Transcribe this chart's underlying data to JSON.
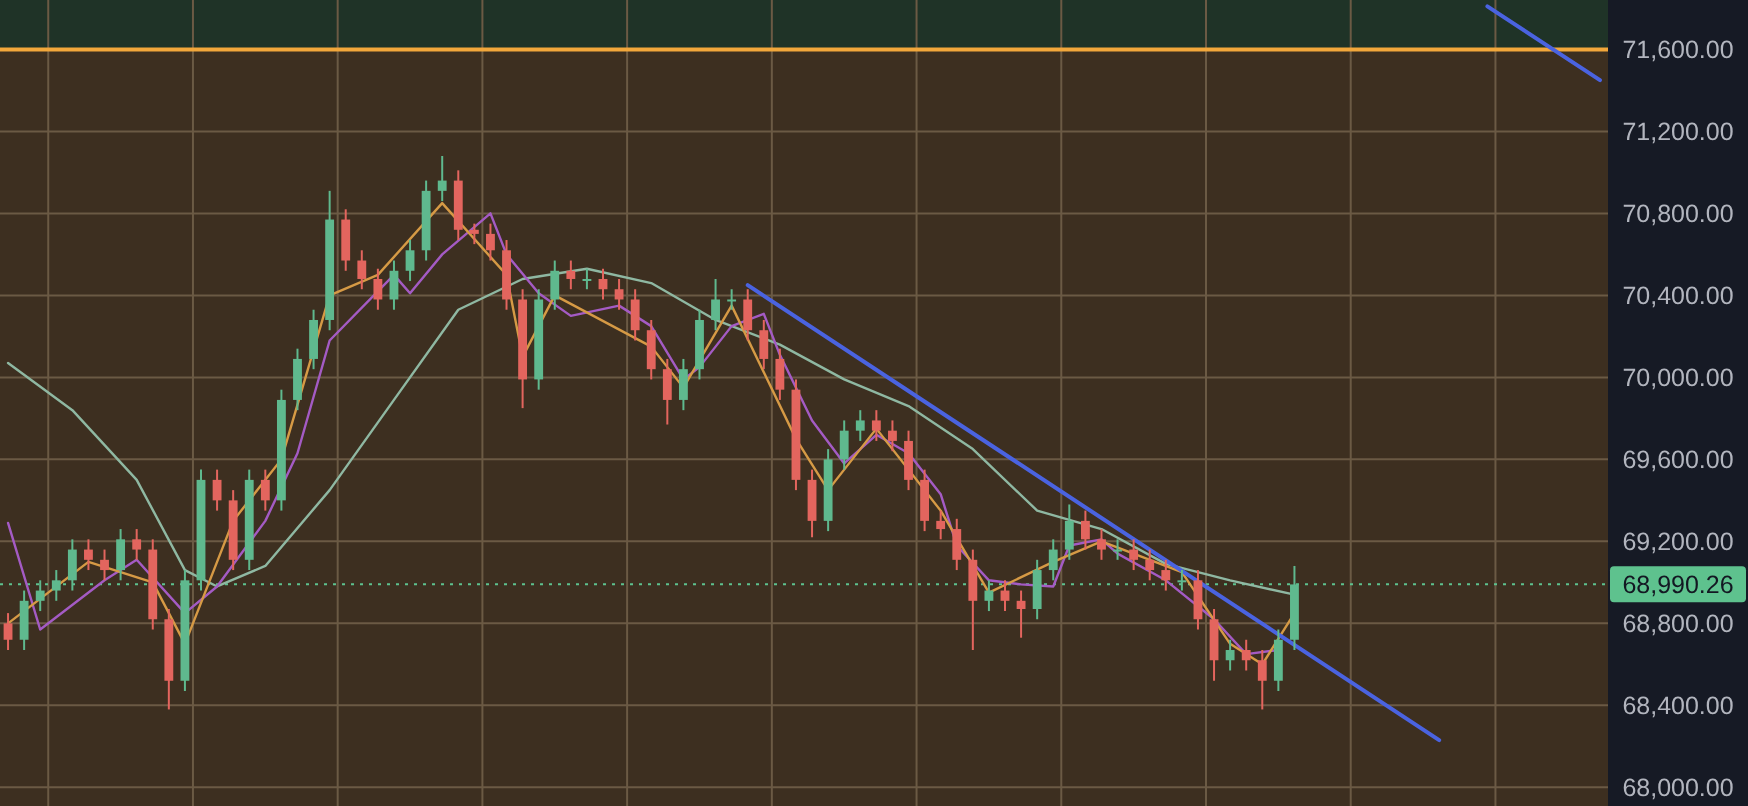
{
  "chart_data": {
    "type": "candlestick",
    "categories": [
      null,
      null,
      null,
      null,
      null,
      null,
      null,
      null,
      null,
      null,
      null,
      null,
      null,
      null,
      null,
      null,
      null,
      null,
      null,
      null,
      null,
      null,
      null,
      null,
      null,
      null,
      null,
      null,
      null,
      null,
      null,
      null,
      null,
      null,
      null,
      null,
      null,
      null,
      null,
      null,
      null,
      null,
      null,
      null,
      null,
      null,
      null,
      null,
      null,
      null,
      null,
      null,
      null,
      null,
      null,
      null,
      null,
      null,
      null,
      null,
      null,
      null,
      null,
      null,
      null,
      null,
      null,
      null,
      null,
      null,
      null,
      null,
      null,
      null,
      null,
      null,
      null,
      null,
      null,
      null,
      null,
      null,
      null,
      null,
      null,
      null,
      null,
      null,
      null,
      null,
      null,
      null,
      null,
      null,
      null,
      null,
      null,
      null,
      null,
      null
    ],
    "colors": [
      "#e3655e",
      "#5fb98e",
      "#5fb98e",
      "#5fb98e",
      "#5fb98e",
      "#e3655e",
      "#e3655e",
      "#5fb98e",
      "#e3655e",
      "#e3655e",
      "#e3655e",
      "#5fb98e",
      "#5fb98e",
      "#e3655e",
      "#e3655e",
      "#5fb98e",
      "#e3655e",
      "#5fb98e",
      "#5fb98e",
      "#5fb98e",
      "#5fb98e",
      "#e3655e",
      "#e3655e",
      "#e3655e",
      "#5fb98e",
      "#5fb98e",
      "#5fb98e",
      "#5fb98e",
      "#e3655e",
      "#e3655e",
      "#e3655e",
      "#e3655e",
      "#e3655e",
      "#5fb98e",
      "#5fb98e",
      "#e3655e",
      "#5fb98e",
      "#e3655e",
      "#e3655e",
      "#e3655e",
      "#e3655e",
      "#e3655e",
      "#5fb98e",
      "#5fb98e",
      "#5fb98e",
      "#5fb98e",
      "#e3655e",
      "#e3655e",
      "#e3655e",
      "#e3655e",
      "#e3655e",
      "#5fb98e",
      "#5fb98e",
      "#5fb98e",
      "#e3655e",
      "#e3655e",
      "#e3655e",
      "#e3655e",
      "#e3655e",
      "#e3655e",
      "#e3655e",
      "#5fb98e",
      "#e3655e",
      "#e3655e",
      "#5fb98e",
      "#5fb98e",
      "#5fb98e",
      "#e3655e",
      "#e3655e",
      "#5fb98e",
      "#e3655e",
      "#e3655e",
      "#e3655e",
      "#5fb98e",
      "#e3655e",
      "#e3655e",
      "#5fb98e",
      "#e3655e",
      "#e3655e",
      "#5fb98e",
      "#5fb98e",
      null,
      null,
      null,
      null,
      null,
      null,
      null,
      null,
      null,
      null,
      null,
      null,
      null,
      null,
      null,
      null,
      null,
      null,
      null
    ],
    "ohlc": [
      [
        68800,
        68850,
        68670,
        68720
      ],
      [
        68720,
        68960,
        68670,
        68910
      ],
      [
        68910,
        69010,
        68860,
        68960
      ],
      [
        68960,
        69060,
        68910,
        69010
      ],
      [
        69010,
        69210,
        68960,
        69160
      ],
      [
        69160,
        69210,
        69060,
        69110
      ],
      [
        69110,
        69160,
        69010,
        69060
      ],
      [
        69060,
        69260,
        69010,
        69210
      ],
      [
        69210,
        69260,
        69110,
        69160
      ],
      [
        69160,
        69210,
        68770,
        68820
      ],
      [
        68820,
        68870,
        68380,
        68520
      ],
      [
        68520,
        69060,
        68470,
        69010
      ],
      [
        69010,
        69550,
        68960,
        69500
      ],
      [
        69500,
        69550,
        69350,
        69400
      ],
      [
        69400,
        69450,
        69060,
        69110
      ],
      [
        69110,
        69550,
        69060,
        69500
      ],
      [
        69500,
        69550,
        69350,
        69400
      ],
      [
        69400,
        69940,
        69350,
        69890
      ],
      [
        69890,
        70140,
        69840,
        70090
      ],
      [
        70090,
        70330,
        70040,
        70280
      ],
      [
        70280,
        70910,
        70230,
        70770
      ],
      [
        70770,
        70820,
        70520,
        70570
      ],
      [
        70570,
        70620,
        70430,
        70480
      ],
      [
        70480,
        70530,
        70330,
        70380
      ],
      [
        70380,
        70570,
        70330,
        70520
      ],
      [
        70520,
        70670,
        70470,
        70620
      ],
      [
        70620,
        70960,
        70570,
        70910
      ],
      [
        70910,
        71080,
        70860,
        70960
      ],
      [
        70960,
        71010,
        70670,
        70720
      ],
      [
        70720,
        70750,
        70650,
        70700
      ],
      [
        70700,
        70750,
        70570,
        70620
      ],
      [
        70620,
        70670,
        70330,
        70380
      ],
      [
        70380,
        70430,
        69850,
        69990
      ],
      [
        69990,
        70430,
        69940,
        70380
      ],
      [
        70380,
        70570,
        70330,
        70520
      ],
      [
        70520,
        70570,
        70430,
        70480
      ],
      [
        70480,
        70530,
        70430,
        70480
      ],
      [
        70480,
        70530,
        70380,
        70430
      ],
      [
        70430,
        70480,
        70330,
        70380
      ],
      [
        70380,
        70430,
        70180,
        70230
      ],
      [
        70230,
        70280,
        69990,
        70040
      ],
      [
        70040,
        70090,
        69770,
        69890
      ],
      [
        69890,
        70090,
        69840,
        70040
      ],
      [
        70040,
        70330,
        69990,
        70280
      ],
      [
        70280,
        70480,
        70230,
        70380
      ],
      [
        70380,
        70430,
        70330,
        70380
      ],
      [
        70380,
        70430,
        70180,
        70230
      ],
      [
        70230,
        70280,
        70040,
        70090
      ],
      [
        70090,
        70140,
        69890,
        69940
      ],
      [
        69940,
        69990,
        69450,
        69500
      ],
      [
        69500,
        69550,
        69220,
        69300
      ],
      [
        69300,
        69650,
        69250,
        69600
      ],
      [
        69600,
        69790,
        69550,
        69740
      ],
      [
        69740,
        69840,
        69690,
        69790
      ],
      [
        69790,
        69840,
        69690,
        69740
      ],
      [
        69740,
        69790,
        69640,
        69690
      ],
      [
        69690,
        69740,
        69450,
        69500
      ],
      [
        69500,
        69550,
        69250,
        69300
      ],
      [
        69300,
        69350,
        69210,
        69260
      ],
      [
        69260,
        69310,
        69060,
        69110
      ],
      [
        69110,
        69160,
        68670,
        68910
      ],
      [
        68910,
        69010,
        68860,
        68960
      ],
      [
        68960,
        69010,
        68860,
        68910
      ],
      [
        68910,
        68960,
        68730,
        68870
      ],
      [
        68870,
        69110,
        68820,
        69060
      ],
      [
        69060,
        69210,
        69010,
        69160
      ],
      [
        69160,
        69380,
        69110,
        69300
      ],
      [
        69300,
        69350,
        69160,
        69210
      ],
      [
        69210,
        69260,
        69110,
        69160
      ],
      [
        69160,
        69210,
        69110,
        69160
      ],
      [
        69160,
        69210,
        69060,
        69110
      ],
      [
        69110,
        69160,
        69010,
        69060
      ],
      [
        69060,
        69110,
        68960,
        69010
      ],
      [
        69010,
        69060,
        68960,
        69010
      ],
      [
        69010,
        69060,
        68770,
        68820
      ],
      [
        68820,
        68870,
        68520,
        68620
      ],
      [
        68620,
        68720,
        68570,
        68670
      ],
      [
        68670,
        68720,
        68570,
        68620
      ],
      [
        68620,
        68670,
        68380,
        68520
      ],
      [
        68520,
        68770,
        68470,
        68720
      ],
      [
        68720,
        69080,
        68670,
        68990
      ],
      null,
      null,
      null,
      null,
      null,
      null,
      null,
      null,
      null,
      null,
      null,
      null,
      null,
      null,
      null,
      null,
      null,
      null,
      null
    ],
    "series": [
      {
        "type": "line",
        "color": "#8fb8a2",
        "values": [
          70070,
          null,
          null,
          null,
          69840,
          null,
          null,
          null,
          69500,
          null,
          null,
          69060,
          null,
          68980,
          null,
          null,
          69080,
          null,
          null,
          null,
          69450,
          null,
          null,
          null,
          69890,
          null,
          null,
          null,
          70330,
          null,
          null,
          null,
          70480,
          null,
          null,
          null,
          70530,
          null,
          null,
          null,
          70460,
          null,
          null,
          null,
          70280,
          null,
          null,
          null,
          70160,
          null,
          null,
          null,
          69990,
          null,
          null,
          null,
          69860,
          null,
          null,
          null,
          69650,
          null,
          null,
          null,
          69350,
          null,
          null,
          null,
          69260,
          null,
          null,
          null,
          69090,
          null,
          null,
          null,
          69010,
          null,
          null,
          null,
          68940,
          null,
          null,
          null,
          null,
          null,
          null,
          null,
          null,
          null,
          null,
          null,
          null,
          null,
          null,
          null,
          null,
          null,
          null,
          null
        ]
      },
      {
        "type": "line",
        "color": "#a45bc4",
        "values": [
          69290,
          null,
          68770,
          null,
          null,
          null,
          69010,
          null,
          69110,
          null,
          null,
          68850,
          null,
          68980,
          null,
          null,
          69300,
          null,
          69630,
          null,
          70180,
          null,
          null,
          null,
          70500,
          70410,
          null,
          70600,
          null,
          null,
          70800,
          70600,
          null,
          70410,
          null,
          70300,
          null,
          null,
          70350,
          null,
          70250,
          null,
          69990,
          70050,
          null,
          70250,
          null,
          70310,
          70110,
          null,
          69790,
          null,
          69580,
          null,
          69720,
          null,
          69630,
          null,
          69430,
          69180,
          null,
          69010,
          null,
          68990,
          null,
          68980,
          69180,
          null,
          69210,
          69140,
          null,
          null,
          69010,
          null,
          null,
          68820,
          null,
          68650,
          null,
          68670,
          null,
          null,
          null,
          null,
          null,
          null,
          null,
          null,
          null,
          null,
          null,
          null,
          null,
          null,
          null,
          null,
          null,
          null,
          null,
          null
        ]
      },
      {
        "type": "line",
        "color": "#d69a45",
        "values": [
          68800,
          null,
          null,
          null,
          null,
          69100,
          null,
          null,
          null,
          69000,
          null,
          68700,
          null,
          null,
          69300,
          null,
          null,
          69600,
          null,
          null,
          70400,
          null,
          null,
          70500,
          null,
          null,
          null,
          70850,
          null,
          null,
          null,
          70500,
          70100,
          null,
          70400,
          null,
          null,
          null,
          null,
          null,
          70150,
          null,
          69950,
          null,
          null,
          70350,
          null,
          null,
          null,
          69700,
          null,
          69450,
          null,
          null,
          69750,
          null,
          null,
          null,
          69350,
          null,
          null,
          68950,
          null,
          null,
          null,
          69100,
          null,
          null,
          69200,
          null,
          null,
          null,
          null,
          69050,
          null,
          null,
          68700,
          null,
          68600,
          null,
          68850,
          null,
          null,
          null,
          null,
          null,
          null,
          null,
          null,
          null,
          null,
          null,
          null,
          null,
          null,
          null,
          null,
          null,
          null,
          null
        ]
      },
      {
        "type": "line",
        "color": "#4a63e0",
        "values": [
          null,
          null,
          null,
          null,
          null,
          null,
          null,
          null,
          null,
          null,
          null,
          null,
          null,
          null,
          null,
          null,
          null,
          null,
          null,
          null,
          null,
          null,
          null,
          null,
          null,
          null,
          null,
          null,
          null,
          null,
          null,
          null,
          null,
          null,
          null,
          null,
          null,
          null,
          null,
          null,
          null,
          null,
          null,
          null,
          null,
          null,
          70450,
          null,
          null,
          null,
          null,
          null,
          null,
          null,
          null,
          null,
          null,
          null,
          null,
          null,
          null,
          null,
          null,
          null,
          null,
          null,
          null,
          null,
          null,
          null,
          null,
          null,
          null,
          null,
          null,
          null,
          null,
          null,
          null,
          null,
          null,
          null,
          null,
          null,
          null,
          null,
          null,
          null,
          null,
          68230,
          null,
          null,
          null,
          null,
          null,
          null,
          null,
          null,
          null,
          null
        ]
      },
      {
        "type": "line",
        "color": "#4a63e0",
        "values": [
          null,
          null,
          null,
          null,
          null,
          null,
          null,
          null,
          null,
          null,
          null,
          null,
          null,
          null,
          null,
          null,
          null,
          null,
          null,
          null,
          null,
          null,
          null,
          null,
          null,
          null,
          null,
          null,
          null,
          null,
          null,
          null,
          null,
          null,
          null,
          null,
          null,
          null,
          null,
          null,
          null,
          null,
          null,
          null,
          null,
          null,
          null,
          null,
          null,
          null,
          null,
          null,
          null,
          null,
          null,
          null,
          null,
          null,
          null,
          null,
          null,
          null,
          null,
          null,
          null,
          null,
          null,
          null,
          null,
          null,
          null,
          null,
          null,
          null,
          null,
          null,
          null,
          null,
          null,
          null,
          null,
          null,
          null,
          null,
          null,
          null,
          null,
          null,
          null,
          null,
          null,
          null,
          71810,
          null,
          null,
          null,
          null,
          null,
          null,
          71450
        ]
      }
    ],
    "ylim": [
      67909,
      71841
    ],
    "yticks": [
      {
        "value": 68000,
        "label": "68,000.00"
      },
      {
        "value": 68400,
        "label": "68,400.00"
      },
      {
        "value": 68800,
        "label": "68,800.00"
      },
      {
        "value": 69200,
        "label": "69,200.00"
      },
      {
        "value": 69600,
        "label": "69,600.00"
      },
      {
        "value": 70000,
        "label": "70,000.00"
      },
      {
        "value": 70400,
        "label": "70,400.00"
      },
      {
        "value": 70800,
        "label": "70,800.00"
      },
      {
        "value": 71200,
        "label": "71,200.00"
      },
      {
        "value": 71600,
        "label": "71,600.00"
      }
    ],
    "ref_lines": [
      {
        "axis": "y",
        "value": 71600,
        "color": "#f2a73b",
        "line_style": "solid"
      },
      {
        "axis": "y",
        "value": 68990.26,
        "label": "68,990.26",
        "color": "#5ec28e",
        "line_style": "dotted"
      }
    ],
    "bands": [
      {
        "axis": "y",
        "from": 71600,
        "to": 71841,
        "color": "#1f3327"
      }
    ],
    "grid": true,
    "tick_labels": "y"
  }
}
